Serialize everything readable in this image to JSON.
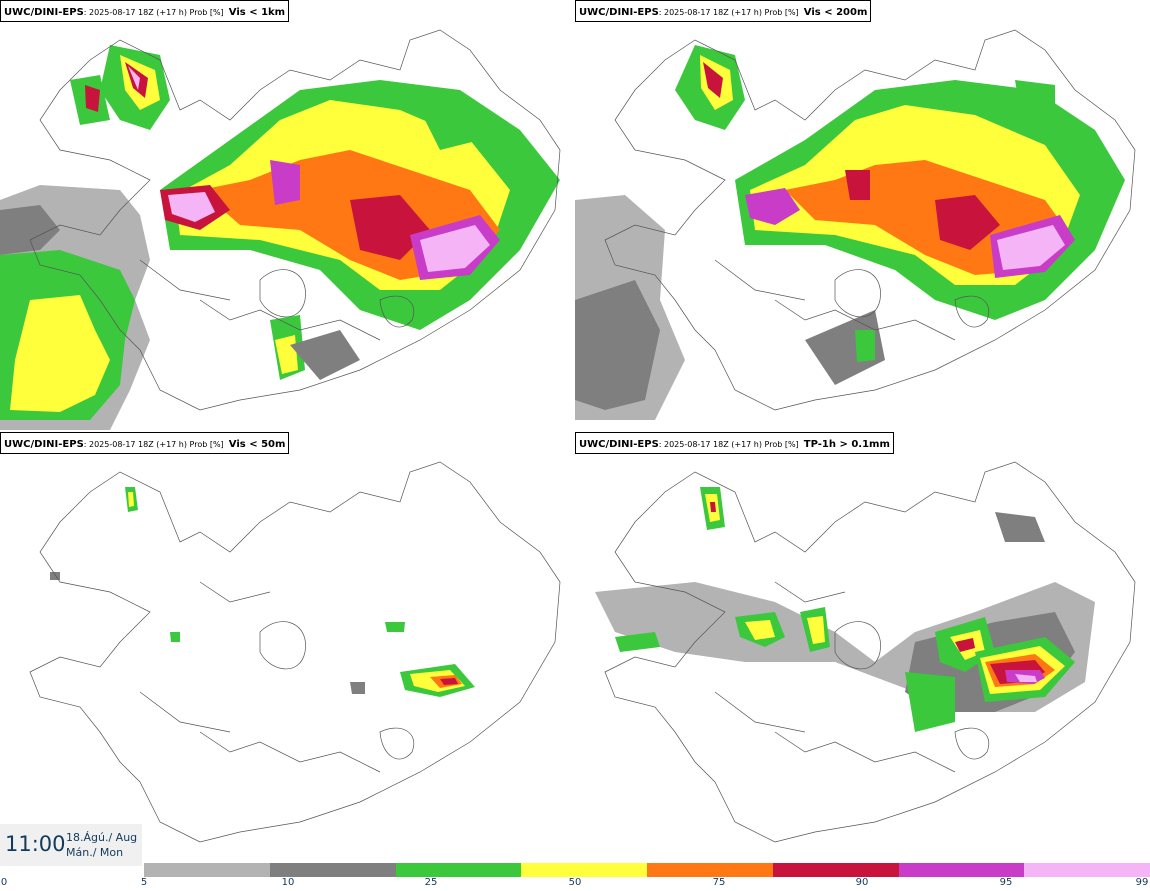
{
  "panels": [
    {
      "model": "UWC/DINI-EPS",
      "meta": ": 2025-08-17 18Z (+17 h) Prob [%]",
      "variable": "Vis < 1km"
    },
    {
      "model": "UWC/DINI-EPS",
      "meta": ": 2025-08-17 18Z (+17 h) Prob [%]",
      "variable": "Vis < 200m"
    },
    {
      "model": "UWC/DINI-EPS",
      "meta": ": 2025-08-17 18Z (+17 h) Prob [%]",
      "variable": "Vis < 50m"
    },
    {
      "model": "UWC/DINI-EPS",
      "meta": ": 2025-08-17 18Z (+17 h) Prob [%]",
      "variable": "TP-1h > 0.1mm"
    }
  ],
  "time": {
    "clock": "11:00",
    "date_line1": "18.Ágú./ Aug",
    "date_line2": "Mán./ Mon"
  },
  "colorbar": {
    "ticks": [
      "0",
      "5",
      "10",
      "25",
      "50",
      "75",
      "90",
      "95",
      "99"
    ],
    "colors": [
      "#ffffff",
      "#b3b3b3",
      "#7f7f7f",
      "#3cc83c",
      "#ffff3c",
      "#ff7814",
      "#c8143c",
      "#c83cc8",
      "#f5b4f5"
    ]
  },
  "colors": {
    "gray_light": "#b3b3b3",
    "gray_dark": "#7f7f7f",
    "green": "#3cc83c",
    "yellow": "#ffff3c",
    "orange": "#ff7814",
    "red": "#c8143c",
    "magenta": "#c83cc8",
    "pink": "#f5b4f5",
    "coast": "#555555"
  }
}
